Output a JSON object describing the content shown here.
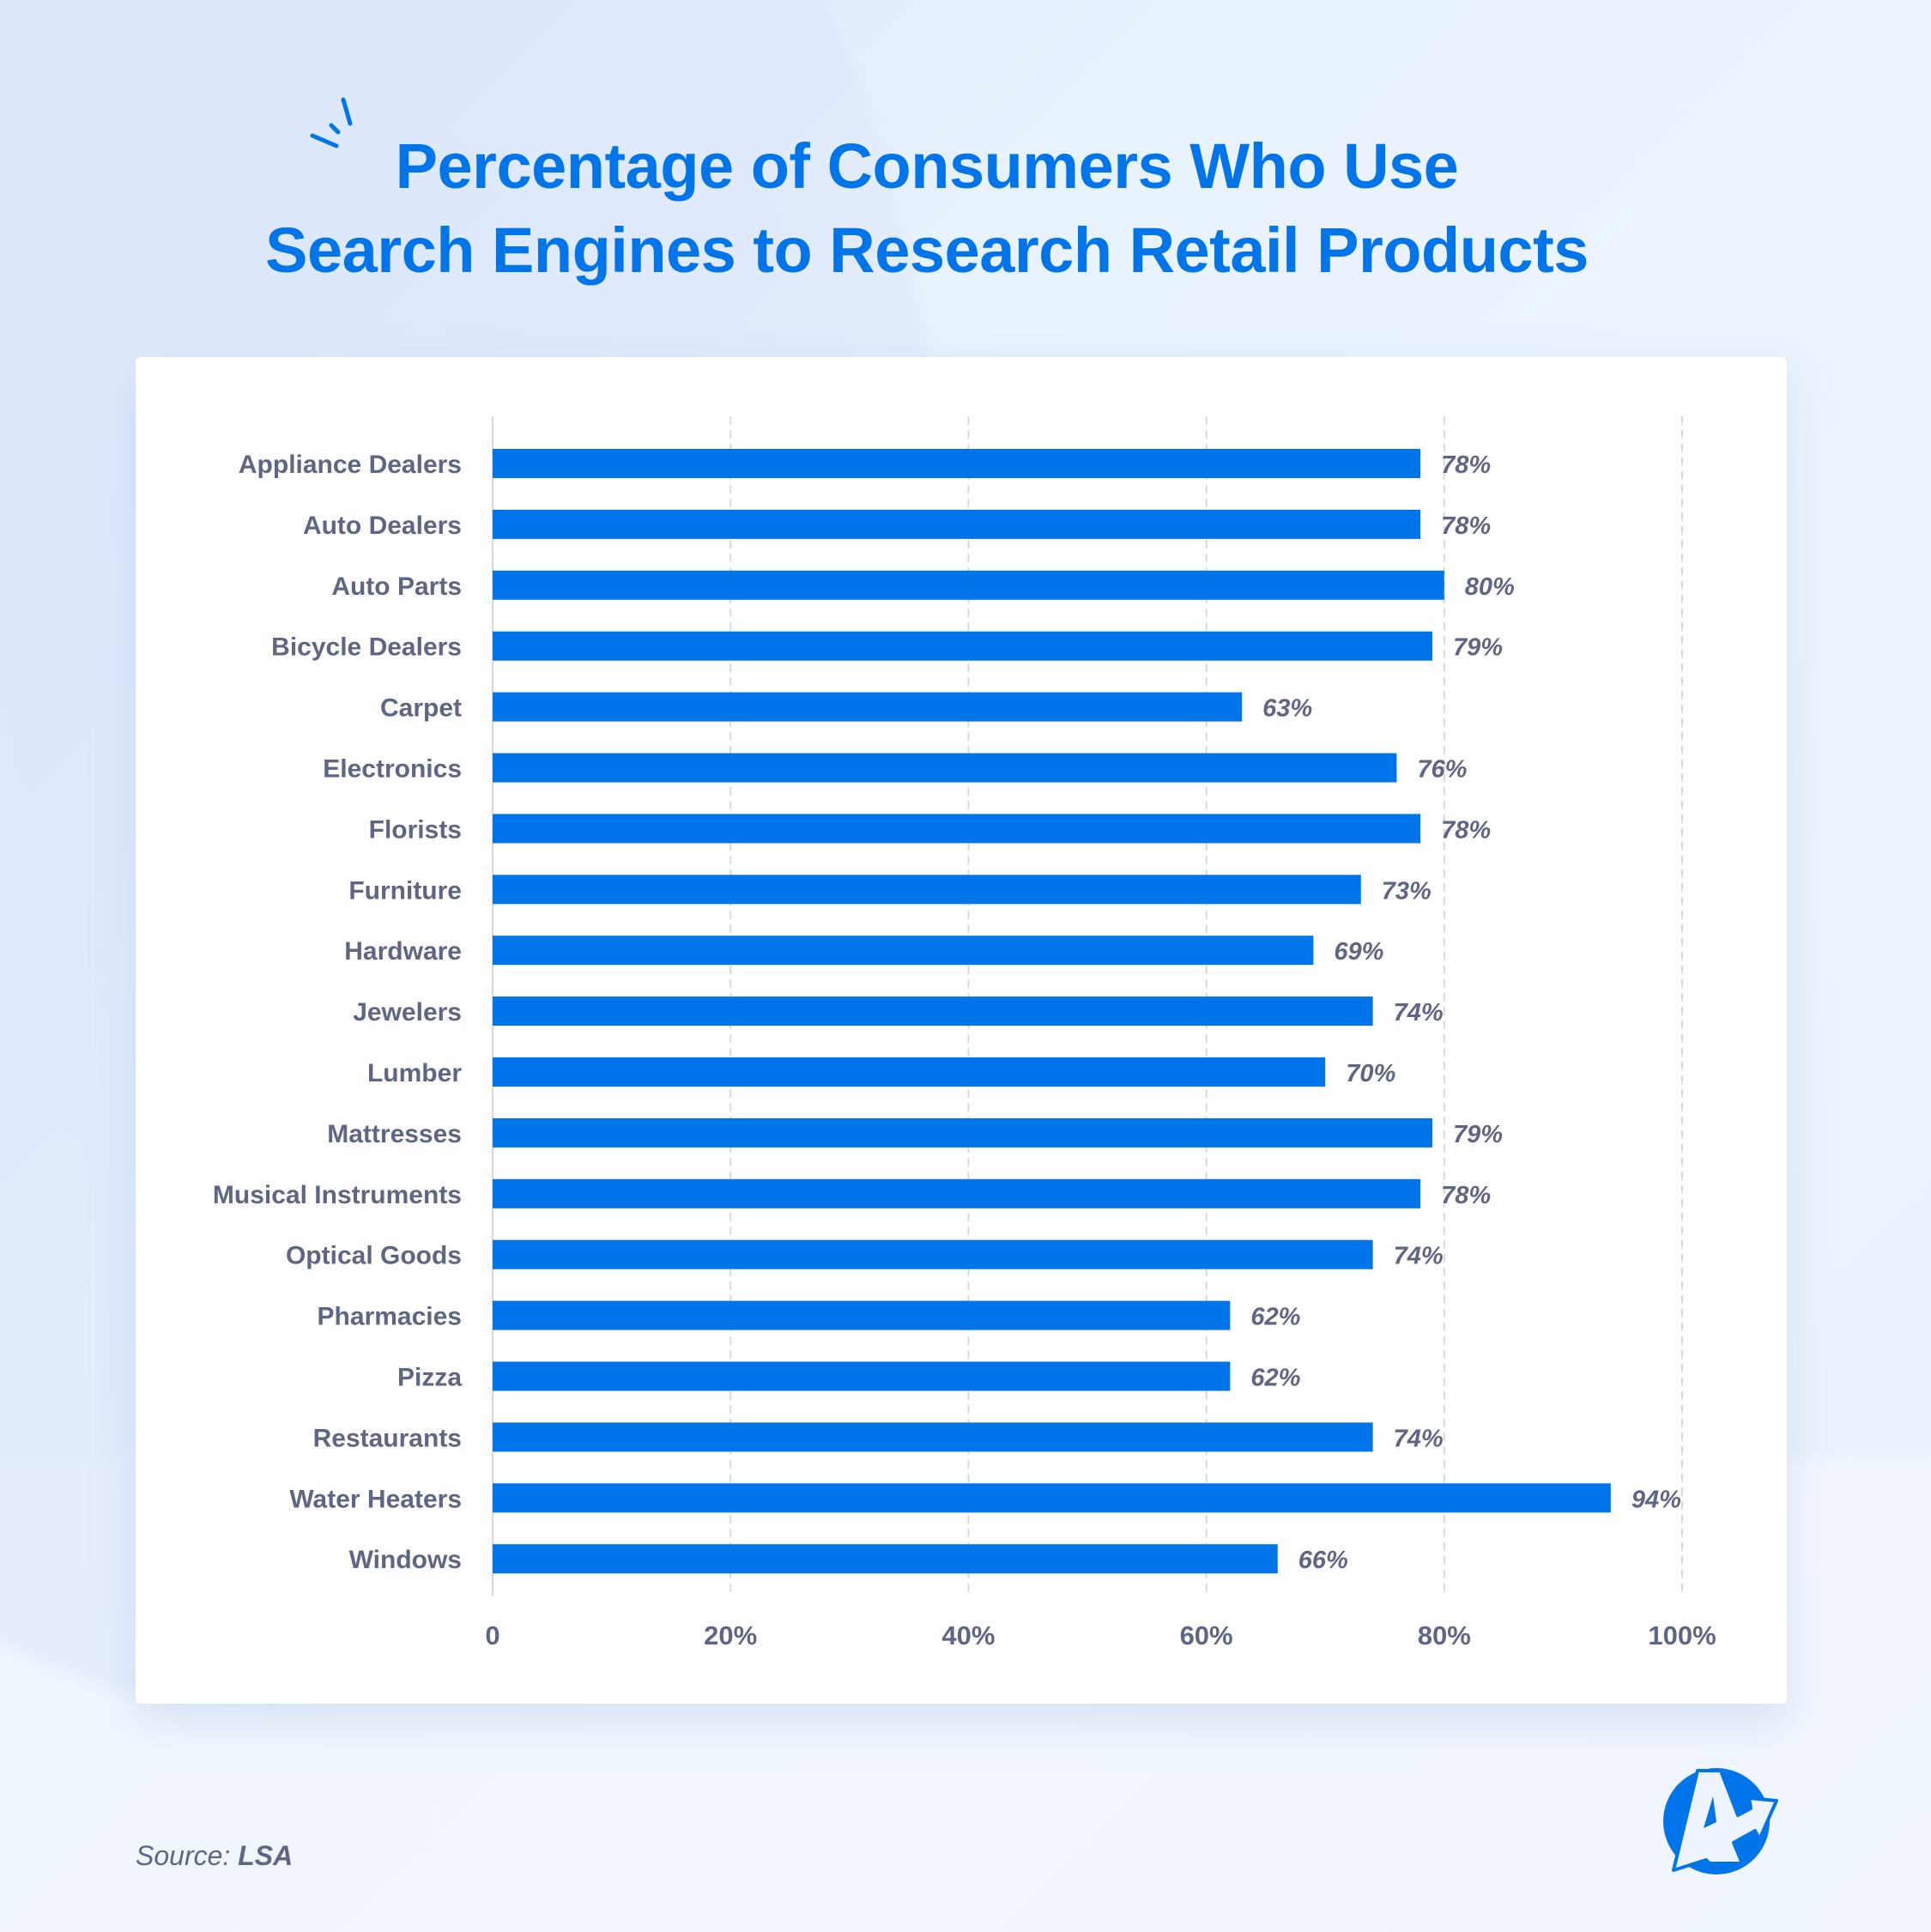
{
  "title": {
    "line1": "Percentage of Consumers Who Use",
    "line2": "Search Engines to Research Retail Products"
  },
  "source": {
    "label": "Source:",
    "value": "LSA"
  },
  "logo": {
    "icon": "brand-a-arrow-logo"
  },
  "colors": {
    "bar": "#0075ea",
    "title": "#0075ea",
    "label": "#5f6683",
    "grid": "#d8d8de"
  },
  "chart_data": {
    "type": "bar",
    "orientation": "horizontal",
    "categories": [
      "Appliance Dealers",
      "Auto Dealers",
      "Auto Parts",
      "Bicycle Dealers",
      "Carpet",
      "Electronics",
      "Florists",
      "Furniture",
      "Hardware",
      "Jewelers",
      "Lumber",
      "Mattresses",
      "Musical Instruments",
      "Optical Goods",
      "Pharmacies",
      "Pizza",
      "Restaurants",
      "Water Heaters",
      "Windows"
    ],
    "values": [
      78,
      78,
      80,
      79,
      63,
      76,
      78,
      73,
      69,
      74,
      70,
      79,
      78,
      74,
      62,
      62,
      74,
      94,
      66
    ],
    "data_labels": [
      "78%",
      "78%",
      "80%",
      "79%",
      "63%",
      "76%",
      "78%",
      "73%",
      "69%",
      "74%",
      "70%",
      "79%",
      "78%",
      "74%",
      "62%",
      "62%",
      "74%",
      "94%",
      "66%"
    ],
    "xlim": [
      0,
      100
    ],
    "xticks": [
      0,
      20,
      40,
      60,
      80,
      100
    ],
    "xtick_labels": [
      "0",
      "20%",
      "40%",
      "60%",
      "80%",
      "100%"
    ],
    "grid": "vertical dashed",
    "legend": "none"
  }
}
